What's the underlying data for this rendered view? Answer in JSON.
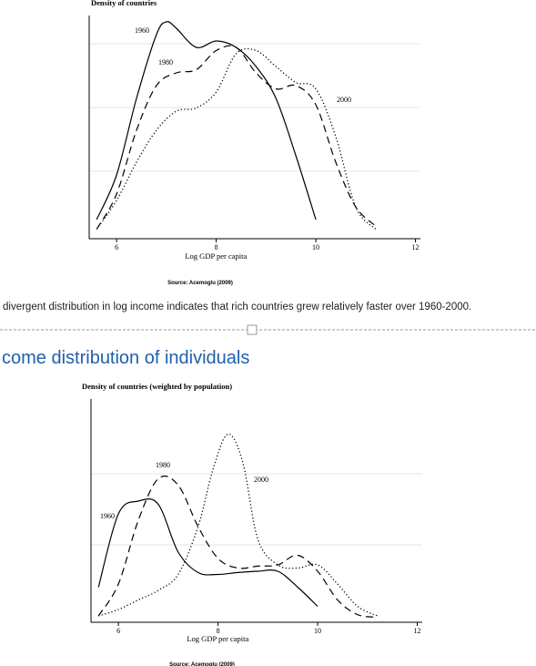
{
  "chart_data": [
    {
      "type": "line",
      "title": "Density of countries",
      "x_label": "Log GDP per capita",
      "source": "Source: Acemoglu (2009)",
      "xlim": [
        5.45,
        12.1
      ],
      "xticks": [
        6,
        8,
        10,
        12
      ],
      "ylim": [
        0,
        0.35
      ],
      "grid": true,
      "series": [
        {
          "name": "1960",
          "color": "#000000",
          "dash": "solid",
          "x": [
            5.6,
            6.0,
            6.4,
            6.8,
            7.0,
            7.2,
            7.6,
            8.0,
            8.4,
            8.8,
            9.2,
            9.6,
            10.0
          ],
          "values": [
            0.03,
            0.1,
            0.22,
            0.32,
            0.34,
            0.33,
            0.3,
            0.31,
            0.3,
            0.27,
            0.22,
            0.13,
            0.03
          ]
        },
        {
          "name": "1980",
          "color": "#000000",
          "dash": "dashed",
          "x": [
            5.6,
            6.0,
            6.4,
            6.8,
            7.2,
            7.6,
            8.0,
            8.4,
            8.8,
            9.2,
            9.6,
            10.0,
            10.4,
            10.8,
            11.2
          ],
          "values": [
            0.015,
            0.07,
            0.17,
            0.24,
            0.26,
            0.265,
            0.295,
            0.3,
            0.26,
            0.235,
            0.24,
            0.21,
            0.12,
            0.05,
            0.02
          ]
        },
        {
          "name": "2000",
          "color": "#000000",
          "dash": "dotted",
          "x": [
            5.6,
            6.0,
            6.4,
            6.8,
            7.2,
            7.6,
            8.0,
            8.4,
            8.8,
            9.2,
            9.6,
            10.0,
            10.4,
            10.8,
            11.2
          ],
          "values": [
            0.015,
            0.06,
            0.12,
            0.17,
            0.2,
            0.205,
            0.23,
            0.29,
            0.295,
            0.27,
            0.245,
            0.235,
            0.16,
            0.05,
            0.015
          ]
        }
      ]
    },
    {
      "type": "line",
      "title": "Density of countries (weighted by population)",
      "x_label": "Log GDP per capita",
      "source": "Source: Acemoglu (2009)",
      "xlim": [
        5.45,
        12.1
      ],
      "xticks": [
        6,
        8,
        10,
        12
      ],
      "ylim": [
        0,
        0.35
      ],
      "grid": true,
      "series": [
        {
          "name": "1960",
          "color": "#000000",
          "dash": "solid",
          "x": [
            5.6,
            6.0,
            6.4,
            6.8,
            7.2,
            7.6,
            8.0,
            8.4,
            8.8,
            9.2,
            9.6,
            10.0
          ],
          "values": [
            0.055,
            0.17,
            0.19,
            0.185,
            0.11,
            0.078,
            0.075,
            0.078,
            0.08,
            0.08,
            0.055,
            0.025
          ]
        },
        {
          "name": "1980",
          "color": "#000000",
          "dash": "dashed",
          "x": [
            5.6,
            6.0,
            6.4,
            6.8,
            7.2,
            7.6,
            8.0,
            8.4,
            8.8,
            9.2,
            9.6,
            10.0,
            10.4,
            10.8,
            11.2
          ],
          "values": [
            0.01,
            0.06,
            0.16,
            0.225,
            0.215,
            0.15,
            0.1,
            0.085,
            0.088,
            0.09,
            0.105,
            0.08,
            0.035,
            0.012,
            0.008
          ]
        },
        {
          "name": "2000",
          "color": "#000000",
          "dash": "dotted",
          "x": [
            5.6,
            6.0,
            6.4,
            6.8,
            7.2,
            7.6,
            7.9,
            8.2,
            8.5,
            8.8,
            9.2,
            9.6,
            10.0,
            10.4,
            10.8,
            11.2
          ],
          "values": [
            0.01,
            0.02,
            0.035,
            0.05,
            0.075,
            0.15,
            0.24,
            0.295,
            0.25,
            0.13,
            0.09,
            0.085,
            0.09,
            0.06,
            0.025,
            0.01
          ]
        }
      ]
    }
  ],
  "caption": "divergent distribution in log income indicates that rich countries grew relatively faster over 1960-2000.",
  "section_heading": "come distribution of individuals"
}
